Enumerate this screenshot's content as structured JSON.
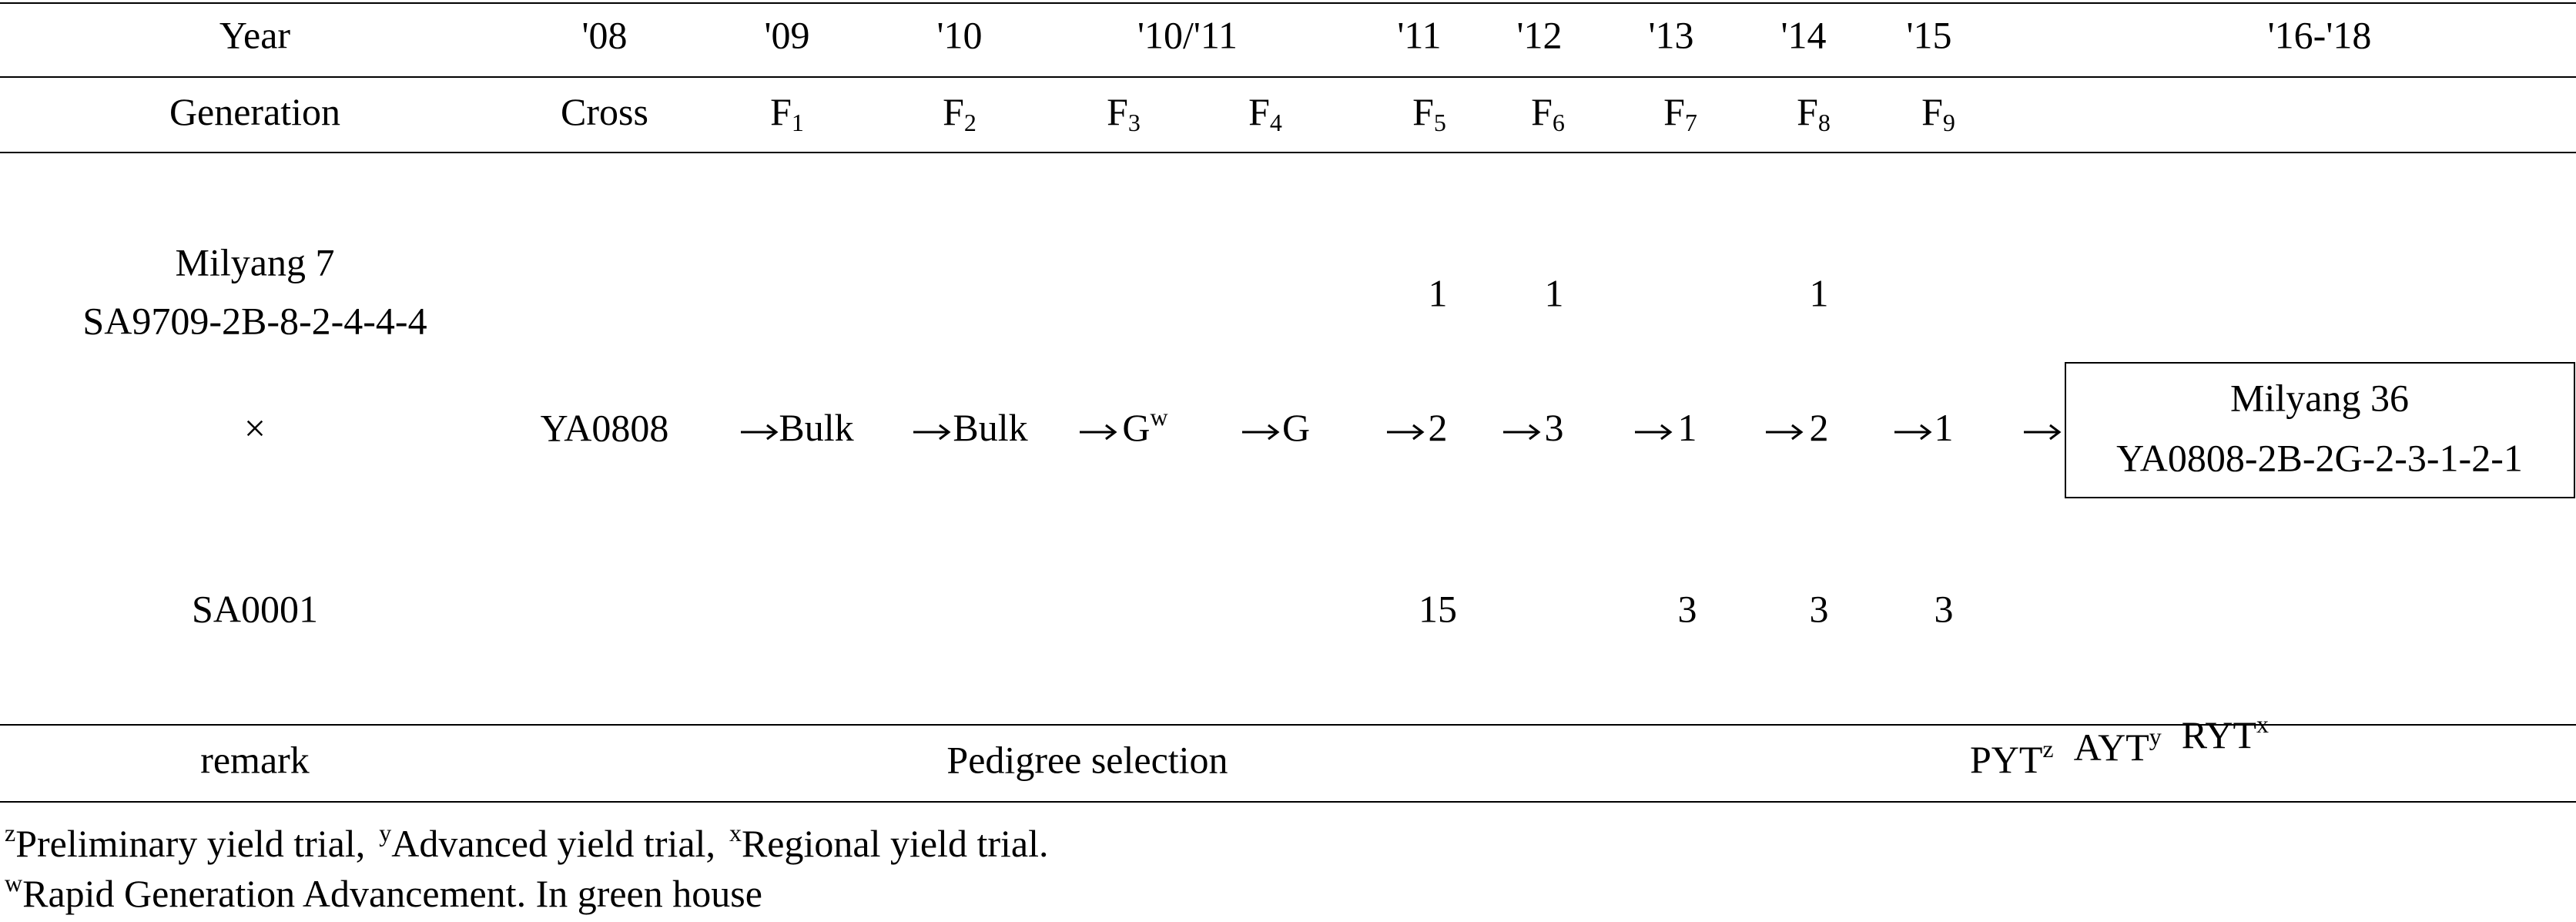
{
  "header": {
    "year": [
      "Year",
      "'08",
      "'09",
      "'10",
      "'10/'11",
      "'11",
      "'12",
      "'13",
      "'14",
      "'15",
      "'16-'18"
    ],
    "generation": [
      {
        "text": "Generation"
      },
      {
        "text": "Cross"
      },
      {
        "text": "F",
        "sub": "1"
      },
      {
        "text": "F",
        "sub": "2"
      },
      {
        "text": "F",
        "sub": "3"
      },
      {
        "text": "F",
        "sub": "4"
      },
      {
        "text": "F",
        "sub": "5"
      },
      {
        "text": "F",
        "sub": "6"
      },
      {
        "text": "F",
        "sub": "7"
      },
      {
        "text": "F",
        "sub": "8"
      },
      {
        "text": "F",
        "sub": "9"
      }
    ]
  },
  "body": {
    "parents": [
      "Milyang 7",
      "SA9709-2B-8-2-4-4-4",
      "×",
      "SA0001"
    ],
    "cross": "YA0808",
    "steps": [
      {
        "text": "Bulk"
      },
      {
        "text": "Bulk"
      },
      {
        "text": "G",
        "sup": "w"
      },
      {
        "text": "G"
      },
      {
        "text": "2"
      },
      {
        "text": "3"
      },
      {
        "text": "1"
      },
      {
        "text": "2"
      },
      {
        "text": "1"
      }
    ],
    "above": [
      null,
      null,
      null,
      null,
      1,
      1,
      null,
      1,
      null
    ],
    "below": [
      null,
      null,
      null,
      null,
      15,
      null,
      3,
      3,
      3
    ],
    "result": [
      "Milyang 36",
      "YA0808-2B-2G-2-3-1-2-1"
    ]
  },
  "remark": {
    "label": "remark",
    "method": "Pedigree selection",
    "trials": [
      {
        "text": "PYT",
        "sup": "z"
      },
      {
        "text": "AYT",
        "sup": "y"
      },
      {
        "text": "RYT",
        "sup": "x"
      }
    ]
  },
  "footnotes": [
    [
      {
        "sup": "z",
        "text": "Preliminary yield trial,"
      },
      {
        "sup": "y",
        "text": "Advanced yield trial,"
      },
      {
        "sup": "x",
        "text": "Regional yield trial."
      }
    ],
    [
      {
        "sup": "w",
        "text": "Rapid Generation Advancement. In green house"
      }
    ]
  ]
}
